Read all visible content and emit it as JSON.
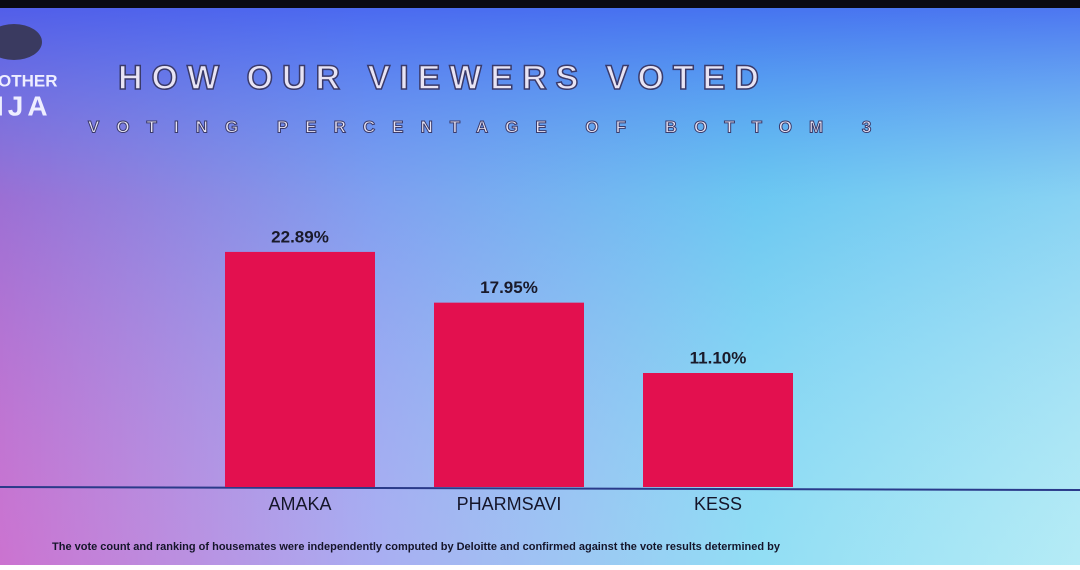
{
  "logo": [
    "OTHER",
    "IJA"
  ],
  "chart_data": {
    "type": "bar",
    "title": "HOW OUR VIEWERS VOTED",
    "subtitle": "VOTING PERCENTAGE OF BOTTOM 3",
    "categories": [
      "AMAKA",
      "PHARMSAVI",
      "KESS"
    ],
    "values": [
      22.89,
      17.95,
      11.1
    ],
    "value_labels": [
      "22.89%",
      "17.95%",
      "11.10%"
    ],
    "color": "#e3104f"
  },
  "footnote": "The vote count and ranking of housemates were independently computed by Deloitte and confirmed against the vote results determined by"
}
